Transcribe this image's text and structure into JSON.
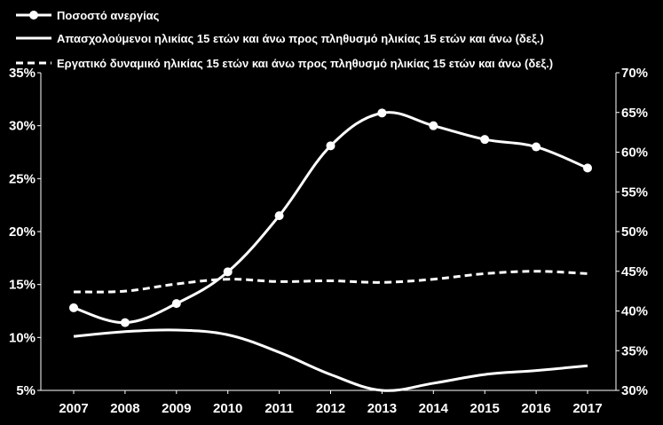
{
  "chart_data": {
    "type": "line",
    "title": "",
    "xlabel": "",
    "ylabel": "",
    "x": [
      "2007",
      "2008",
      "2009",
      "2010",
      "2011",
      "2012",
      "2013",
      "2014",
      "2015",
      "2016",
      "2017"
    ],
    "y_left": {
      "range": [
        5,
        35
      ],
      "ticks": [
        5,
        10,
        15,
        20,
        25,
        30,
        35
      ],
      "tick_labels": [
        "5%",
        "10%",
        "15%",
        "20%",
        "25%",
        "30%",
        "35%"
      ]
    },
    "y_right": {
      "range": [
        30,
        70
      ],
      "ticks": [
        30,
        35,
        40,
        45,
        50,
        55,
        60,
        65,
        70
      ],
      "tick_labels": [
        "30%",
        "35%",
        "40%",
        "45%",
        "50%",
        "55%",
        "60%",
        "65%",
        "70%"
      ]
    },
    "grid": false,
    "legend_position": "top-left",
    "colors": {
      "background": "#000000",
      "line": "#ffffff"
    },
    "series": [
      {
        "name": "Ποσοστό ανεργίας",
        "axis": "left",
        "style": "solid-markers",
        "values": [
          12.8,
          11.4,
          13.2,
          16.2,
          21.5,
          28.1,
          31.2,
          30.0,
          28.7,
          28.0,
          26.0
        ]
      },
      {
        "name": "Απασχολούμενοι ηλικίας 15 ετών και άνω προς πληθυσμό ηλικίας 15 ετών και άνω (δεξ.)",
        "axis": "right",
        "style": "solid",
        "values": [
          36.8,
          37.4,
          37.6,
          37.0,
          34.8,
          32.0,
          30.0,
          30.9,
          32.0,
          32.5,
          33.1
        ]
      },
      {
        "name": "Εργατικό δυναμικό ηλικίας 15 ετών και άνω προς πληθυσμό ηλικίας 15 ετών και άνω (δεξ.)",
        "axis": "right",
        "style": "dashed",
        "values": [
          42.4,
          42.5,
          43.4,
          44.0,
          43.7,
          43.8,
          43.6,
          44.0,
          44.7,
          45.0,
          44.7
        ]
      }
    ]
  }
}
